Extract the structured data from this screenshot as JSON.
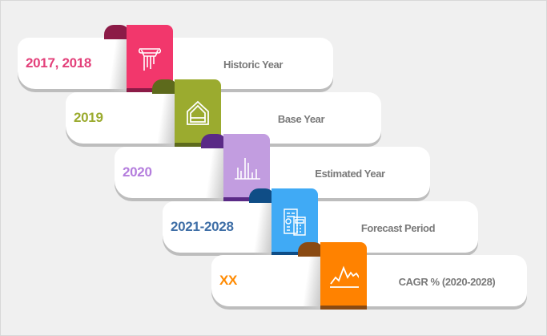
{
  "rows": [
    {
      "value": "2017, 2018",
      "label": "Historic Year",
      "icon": "pillar-icon",
      "color": "#f2376c",
      "cap": "#8c1b47",
      "text_color": "#e3407a"
    },
    {
      "value": "2019",
      "label": "Base Year",
      "icon": "house-icon",
      "color": "#9bab2f",
      "cap": "#5d6a1c",
      "text_color": "#9bab2f"
    },
    {
      "value": "2020",
      "label": "Estimated Year",
      "icon": "bar-chart-icon",
      "color": "#c29de0",
      "cap": "#5a2a86",
      "text_color": "#b47ddd"
    },
    {
      "value": "2021-2028",
      "label": "Forecast Period",
      "icon": "calculator-document-icon",
      "color": "#40aaf5",
      "cap": "#0f4d86",
      "text_color": "#3e6ea6"
    },
    {
      "value": "XX",
      "label": "CAGR % (2020-2028)",
      "icon": "line-chart-icon",
      "color": "#ff8200",
      "cap": "#8a4a12",
      "text_color": "#ff8a00"
    }
  ]
}
